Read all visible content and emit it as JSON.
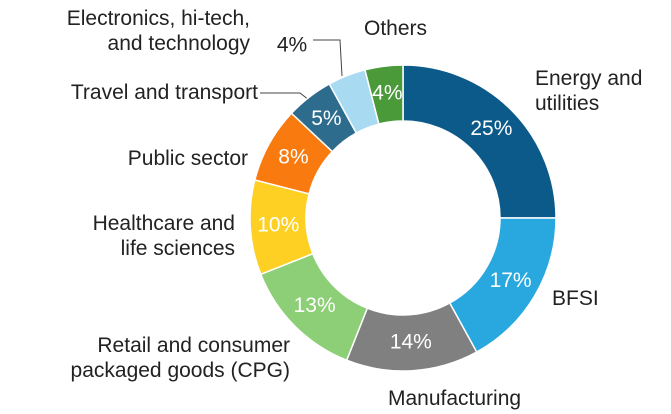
{
  "chart_data": {
    "type": "donut",
    "categories": [
      "Energy and\nutilities",
      "BFSI",
      "Manufacturing",
      "Retail and consumer\npackaged goods (CPG)",
      "Healthcare and\nlife sciences",
      "Public sector",
      "Travel and transport",
      "Electronics, hi-tech,\nand technology",
      "Others"
    ],
    "values": [
      25,
      17,
      14,
      13,
      10,
      8,
      5,
      4,
      4
    ],
    "value_labels": [
      "25%",
      "17%",
      "14%",
      "13%",
      "10%",
      "8%",
      "5%",
      "4%",
      "4%"
    ],
    "colors": [
      "#0b5a8a",
      "#29a8e0",
      "#808080",
      "#8dcf76",
      "#fdd023",
      "#f97b0f",
      "#2e6c8e",
      "#a8daf2",
      "#4a9a3a"
    ]
  }
}
